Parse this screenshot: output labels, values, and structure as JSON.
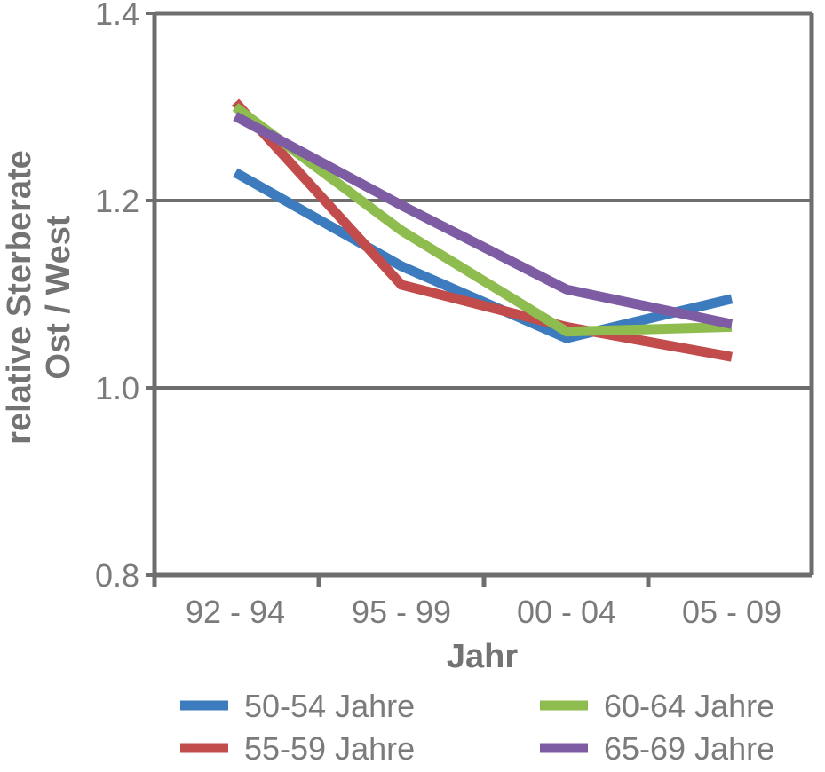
{
  "chart_data": {
    "type": "line",
    "categories": [
      "92 - 94",
      "95 - 99",
      "00 - 04",
      "05 - 09"
    ],
    "series": [
      {
        "name": "50-54 Jahre",
        "color": "#3c7bbd",
        "values": [
          1.23,
          1.13,
          1.053,
          1.095
        ]
      },
      {
        "name": "55-59 Jahre",
        "color": "#c24b4b",
        "values": [
          1.305,
          1.11,
          1.065,
          1.033
        ]
      },
      {
        "name": "60-64 Jahre",
        "color": "#8fbc4f",
        "values": [
          1.3,
          1.168,
          1.06,
          1.065
        ]
      },
      {
        "name": "65-69 Jahre",
        "color": "#7d5ca3",
        "values": [
          1.29,
          1.195,
          1.105,
          1.068
        ]
      }
    ],
    "xlabel": "Jahr",
    "ylabel_lines": [
      "relative Sterberate",
      "Ost / West"
    ],
    "ylim": [
      0.8,
      1.4
    ],
    "yticks": [
      "0.8",
      "1.0",
      "1.2",
      "1.4"
    ],
    "gridlines": [
      1.0,
      1.2
    ],
    "legend": {
      "position": "bottom",
      "columns": 2
    }
  }
}
